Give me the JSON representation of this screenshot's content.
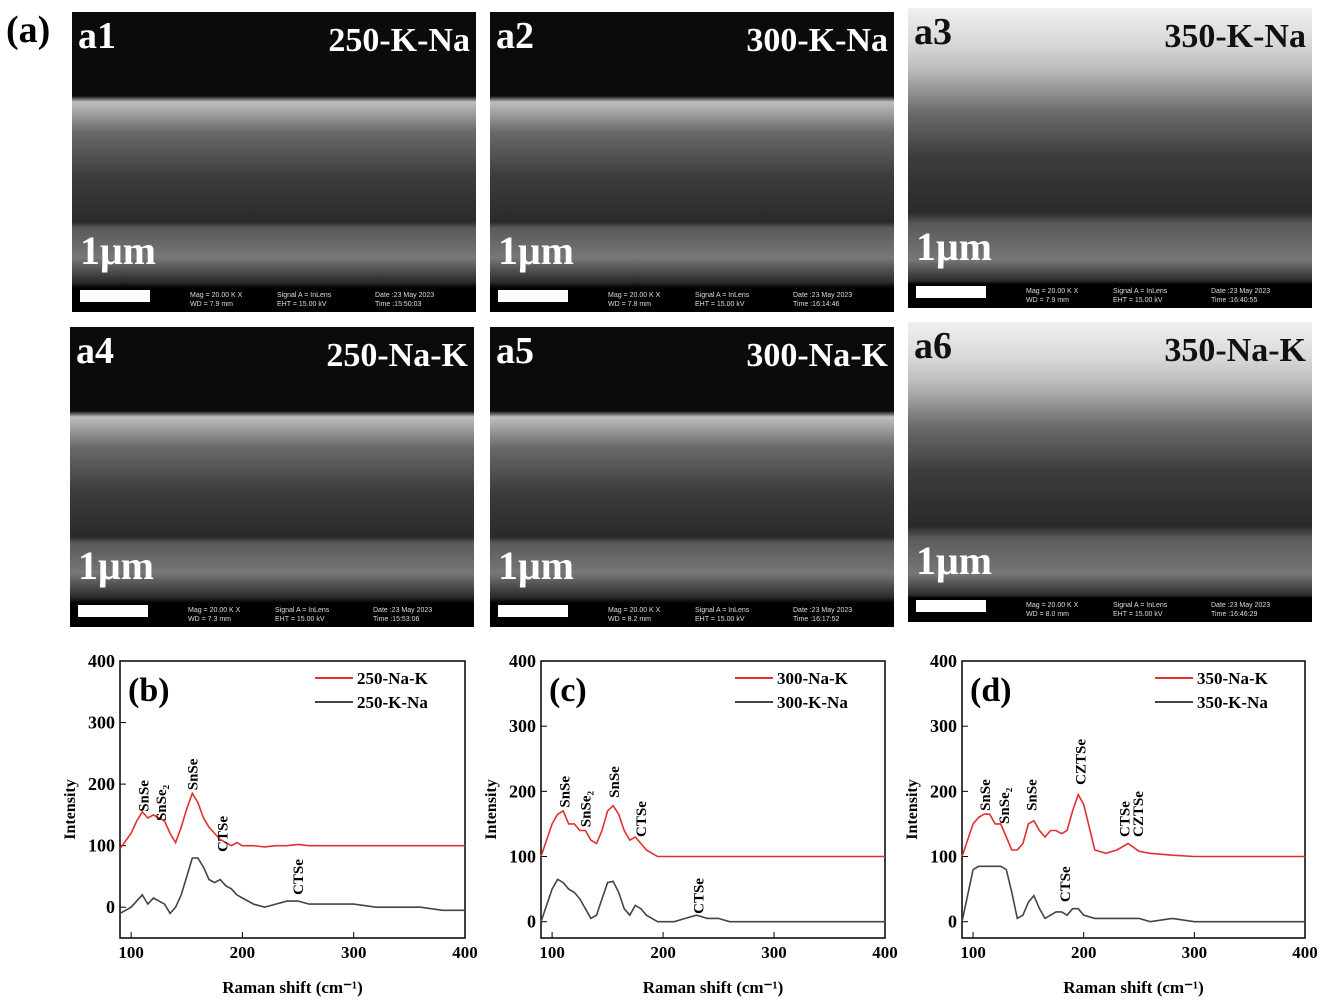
{
  "figure_label": "(a)",
  "sem_images": [
    {
      "label": "a1",
      "sample": "250-K-Na",
      "scale_bar": "1μm",
      "mag": "Mag = 20.00 K X",
      "wd": "WD = 7.9 mm",
      "signal": "Signal A = InLens",
      "eht": "EHT = 15.00 kV",
      "date": "Date :23 May 2023",
      "time": "Time :15:50:03"
    },
    {
      "label": "a2",
      "sample": "300-K-Na",
      "scale_bar": "1μm",
      "mag": "Mag = 20.00 K X",
      "wd": "WD = 7.8 mm",
      "signal": "Signal A = InLens",
      "eht": "EHT = 15.00 kV",
      "date": "Date :23 May 2023",
      "time": "Time :16:14:46"
    },
    {
      "label": "a3",
      "sample": "350-K-Na",
      "scale_bar": "1μm",
      "mag": "Mag = 20.00 K X",
      "wd": "WD = 7.9 mm",
      "signal": "Signal A = InLens",
      "eht": "EHT = 15.00 kV",
      "date": "Date :23 May 2023",
      "time": "Time :16:40:55"
    },
    {
      "label": "a4",
      "sample": "250-Na-K",
      "scale_bar": "1μm",
      "mag": "Mag = 20.00 K X",
      "wd": "WD = 7.3 mm",
      "signal": "Signal A = InLens",
      "eht": "EHT = 15.00 kV",
      "date": "Date :23 May 2023",
      "time": "Time :15:53:06"
    },
    {
      "label": "a5",
      "sample": "300-Na-K",
      "scale_bar": "1μm",
      "mag": "Mag = 20.00 K X",
      "wd": "WD = 8.2 mm",
      "signal": "Signal A = InLens",
      "eht": "EHT = 15.00 kV",
      "date": "Date :23 May 2023",
      "time": "Time :16:17:52"
    },
    {
      "label": "a6",
      "sample": "350-Na-K",
      "scale_bar": "1μm",
      "mag": "Mag = 20.00 K X",
      "wd": "WD = 8.0 mm",
      "signal": "Signal A = InLens",
      "eht": "EHT = 15.00 kV",
      "date": "Date :23 May 2023",
      "time": "Time :16:46:29"
    }
  ],
  "chart_data": [
    {
      "type": "line",
      "panel_label": "(b)",
      "x_label": "Raman shift (cm⁻¹)",
      "y_label": "Intensity",
      "xlim": [
        90,
        400
      ],
      "xticks": [
        100,
        200,
        300,
        400
      ],
      "ylim": [
        -50,
        400
      ],
      "yticks": [
        0,
        100,
        200,
        300,
        400
      ],
      "legend": "upper right",
      "x": [
        90,
        100,
        105,
        110,
        115,
        120,
        125,
        130,
        135,
        140,
        145,
        150,
        155,
        160,
        165,
        170,
        175,
        180,
        185,
        190,
        195,
        200,
        210,
        220,
        230,
        240,
        250,
        260,
        280,
        300,
        320,
        340,
        360,
        380,
        400
      ],
      "series": [
        {
          "name": "250-Na-K",
          "color": "#e03030",
          "values": [
            95,
            120,
            140,
            155,
            145,
            150,
            145,
            140,
            120,
            105,
            130,
            160,
            185,
            170,
            145,
            130,
            120,
            110,
            105,
            100,
            105,
            100,
            100,
            98,
            100,
            100,
            102,
            100,
            100,
            100,
            100,
            100,
            100,
            100,
            100
          ]
        },
        {
          "name": "250-K-Na",
          "color": "#444444",
          "values": [
            -10,
            0,
            10,
            20,
            5,
            15,
            10,
            5,
            -10,
            0,
            20,
            50,
            80,
            80,
            65,
            45,
            40,
            45,
            35,
            30,
            20,
            15,
            5,
            0,
            5,
            10,
            10,
            5,
            5,
            5,
            0,
            0,
            0,
            -5,
            -5
          ]
        }
      ],
      "annotations": [
        {
          "text": "SnSe",
          "x": 111,
          "y": 155
        },
        {
          "text": "SnSe₂",
          "x": 127,
          "y": 140
        },
        {
          "text": "SnSe",
          "x": 155,
          "y": 190
        },
        {
          "text": "CTSe",
          "x": 182,
          "y": 90
        },
        {
          "text": "CTSe",
          "x": 250,
          "y": 20
        }
      ]
    },
    {
      "type": "line",
      "panel_label": "(c)",
      "x_label": "Raman shift (cm⁻¹)",
      "y_label": "Intensity",
      "xlim": [
        90,
        400
      ],
      "xticks": [
        100,
        200,
        300,
        400
      ],
      "ylim": [
        -25,
        400
      ],
      "yticks": [
        0,
        100,
        200,
        300,
        400
      ],
      "legend": "upper right",
      "x": [
        90,
        100,
        105,
        110,
        115,
        120,
        125,
        130,
        135,
        140,
        145,
        150,
        155,
        160,
        165,
        170,
        175,
        180,
        185,
        190,
        195,
        200,
        210,
        220,
        230,
        240,
        250,
        260,
        280,
        300,
        320,
        340,
        360,
        380,
        400
      ],
      "series": [
        {
          "name": "300-Na-K",
          "color": "#e03030",
          "values": [
            100,
            150,
            165,
            170,
            150,
            150,
            140,
            140,
            125,
            120,
            140,
            170,
            178,
            165,
            140,
            125,
            130,
            120,
            110,
            105,
            100,
            100,
            100,
            100,
            100,
            100,
            100,
            100,
            100,
            100,
            100,
            100,
            100,
            100,
            100
          ]
        },
        {
          "name": "300-K-Na",
          "color": "#444444",
          "values": [
            0,
            50,
            65,
            60,
            50,
            45,
            35,
            20,
            5,
            10,
            35,
            60,
            62,
            45,
            20,
            10,
            25,
            20,
            10,
            5,
            0,
            0,
            0,
            5,
            10,
            5,
            5,
            0,
            0,
            0,
            0,
            0,
            0,
            0,
            0
          ]
        }
      ],
      "annotations": [
        {
          "text": "SnSe",
          "x": 111,
          "y": 175
        },
        {
          "text": "SnSe₂",
          "x": 130,
          "y": 145
        },
        {
          "text": "SnSe",
          "x": 156,
          "y": 190
        },
        {
          "text": "CTSe",
          "x": 180,
          "y": 130
        },
        {
          "text": "CTSe",
          "x": 232,
          "y": 12
        }
      ]
    },
    {
      "type": "line",
      "panel_label": "(d)",
      "x_label": "Raman shift (cm⁻¹)",
      "y_label": "Intensity",
      "xlim": [
        90,
        400
      ],
      "xticks": [
        100,
        200,
        300,
        400
      ],
      "ylim": [
        -25,
        400
      ],
      "yticks": [
        0,
        100,
        200,
        300,
        400
      ],
      "legend": "upper right",
      "x": [
        90,
        100,
        105,
        110,
        115,
        120,
        125,
        130,
        135,
        140,
        145,
        150,
        155,
        160,
        165,
        170,
        175,
        180,
        185,
        190,
        195,
        200,
        210,
        220,
        230,
        240,
        250,
        260,
        280,
        300,
        320,
        340,
        360,
        380,
        400
      ],
      "series": [
        {
          "name": "350-Na-K",
          "color": "#e03030",
          "values": [
            100,
            150,
            160,
            165,
            165,
            150,
            150,
            130,
            110,
            110,
            120,
            150,
            155,
            140,
            130,
            140,
            140,
            135,
            140,
            170,
            195,
            180,
            110,
            105,
            110,
            120,
            108,
            105,
            102,
            100,
            100,
            100,
            100,
            100,
            100
          ]
        },
        {
          "name": "350-K-Na",
          "color": "#444444",
          "values": [
            0,
            80,
            85,
            85,
            85,
            85,
            85,
            80,
            45,
            5,
            10,
            30,
            40,
            20,
            5,
            10,
            15,
            15,
            10,
            20,
            20,
            10,
            5,
            5,
            5,
            5,
            5,
            0,
            5,
            0,
            0,
            0,
            0,
            0,
            0
          ]
        }
      ],
      "annotations": [
        {
          "text": "SnSe",
          "x": 111,
          "y": 170
        },
        {
          "text": "SnSe₂",
          "x": 128,
          "y": 150
        },
        {
          "text": "SnSe",
          "x": 153,
          "y": 170
        },
        {
          "text": "CZTSe",
          "x": 197,
          "y": 210
        },
        {
          "text": "CTSe",
          "x": 183,
          "y": 30
        },
        {
          "text": "CTSe",
          "x": 237,
          "y": 130
        },
        {
          "text": "CZTSe",
          "x": 249,
          "y": 130
        }
      ]
    }
  ]
}
